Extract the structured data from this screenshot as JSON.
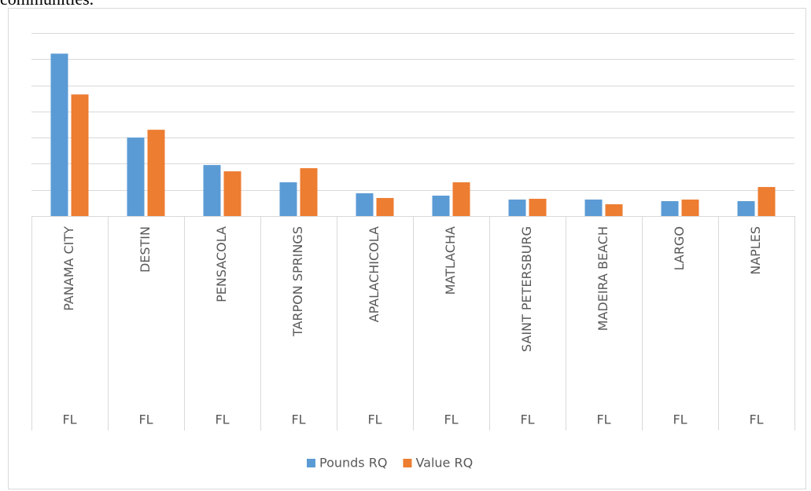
{
  "heading": "communities.",
  "chart_data": {
    "type": "bar",
    "categories": [
      "PANAMA CITY",
      "DESTIN",
      "PENSACOLA",
      "TARPON SPRINGS",
      "APALACHICOLA",
      "MATLACHA",
      "SAINT PETERSBURG",
      "MADEIRA BEACH",
      "LARGO",
      "NAPLES"
    ],
    "states": [
      "FL",
      "FL",
      "FL",
      "FL",
      "FL",
      "FL",
      "FL",
      "FL",
      "FL",
      "FL"
    ],
    "series": [
      {
        "name": "Pounds RQ",
        "color": "#5b9bd5",
        "values": [
          6.21,
          3.0,
          1.95,
          1.29,
          0.87,
          0.78,
          0.63,
          0.63,
          0.57,
          0.57
        ]
      },
      {
        "name": "Value RQ",
        "color": "#ed7d31",
        "values": [
          4.65,
          3.3,
          1.71,
          1.83,
          0.69,
          1.29,
          0.66,
          0.45,
          0.63,
          1.11
        ]
      }
    ],
    "ylim": [
      0,
      7
    ],
    "yticks": [
      0,
      1,
      2,
      3,
      4,
      5,
      6,
      7
    ],
    "grid": true,
    "legend": "bottom"
  }
}
